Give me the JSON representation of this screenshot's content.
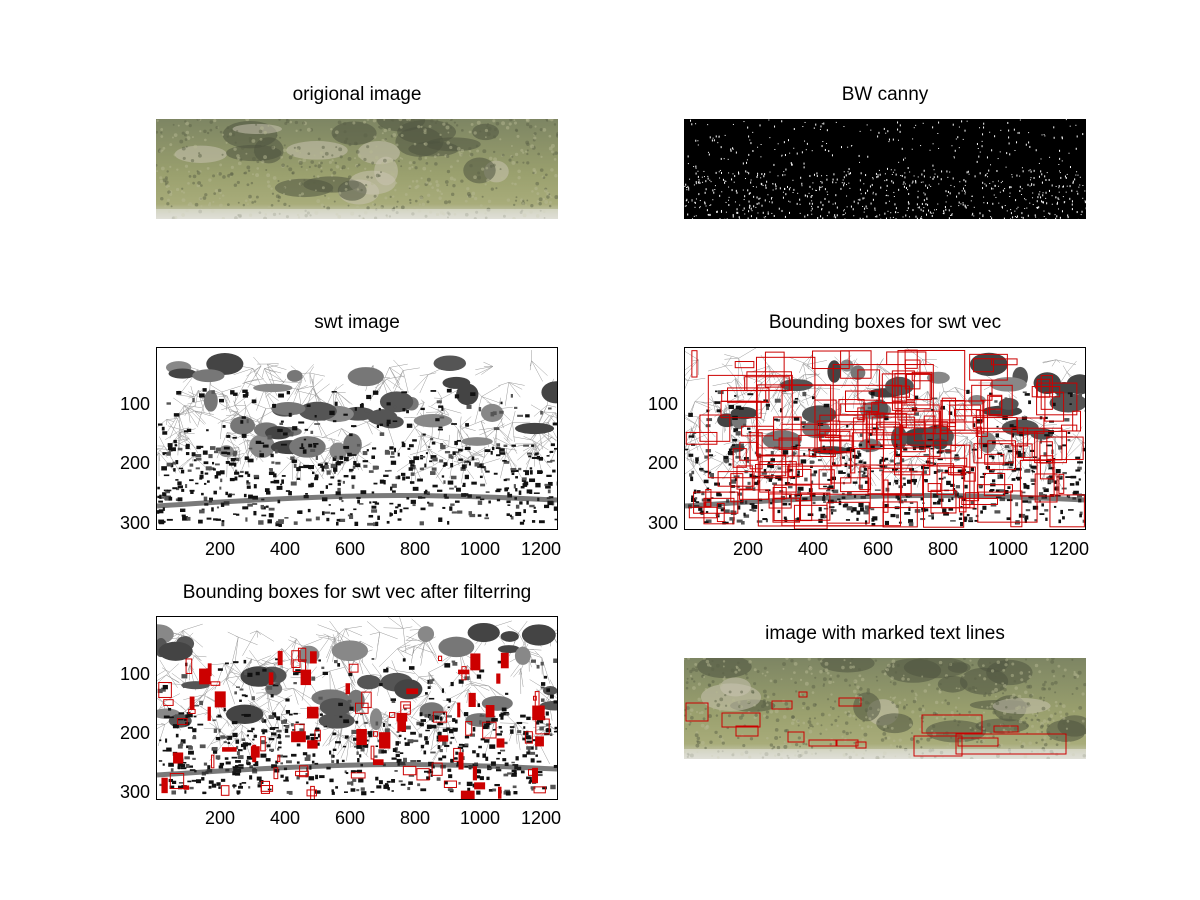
{
  "subplots": [
    {
      "id": "orig",
      "title": "origional image"
    },
    {
      "id": "canny",
      "title": "BW canny"
    },
    {
      "id": "swt",
      "title": "swt image",
      "xticks": [
        "200",
        "400",
        "600",
        "800",
        "1000",
        "1200"
      ],
      "yticks": [
        "100",
        "200",
        "300"
      ]
    },
    {
      "id": "bbox",
      "title": "Bounding boxes for swt vec",
      "xticks": [
        "200",
        "400",
        "600",
        "800",
        "1000",
        "1200"
      ],
      "yticks": [
        "100",
        "200",
        "300"
      ]
    },
    {
      "id": "filtered",
      "title": "Bounding boxes for swt vec after filterring",
      "xticks": [
        "200",
        "400",
        "600",
        "800",
        "1000",
        "1200"
      ],
      "yticks": [
        "100",
        "200",
        "300"
      ]
    },
    {
      "id": "marked",
      "title": "image with marked text lines"
    }
  ],
  "image_extent": {
    "x": [
      0,
      1240
    ],
    "y": [
      0,
      310
    ]
  },
  "colors": {
    "box": "#cc0000",
    "skin_light": "#8e9470",
    "skin_dark": "#4f5440",
    "canny_bg": "#000000",
    "canny_edge": "#ffffff"
  }
}
